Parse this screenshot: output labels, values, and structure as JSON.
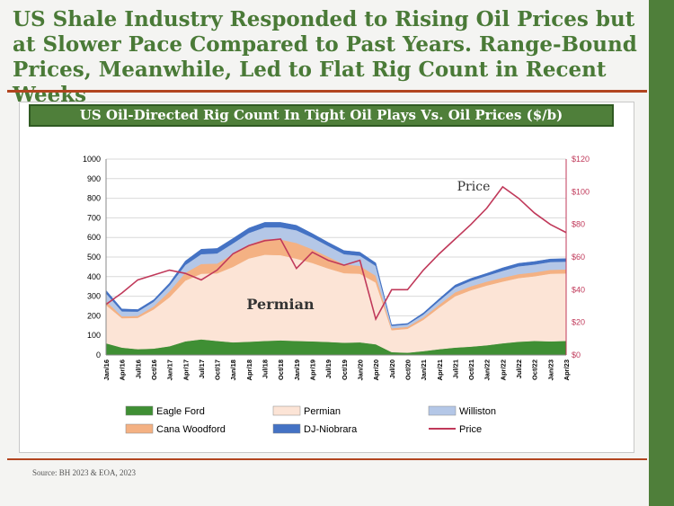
{
  "page": {
    "title": "US Shale Industry Responded to Rising Oil Prices but at Slower Pace Compared to Past Years. Range-Bound Prices, Meanwhile, Led to Flat Rig Count in Recent Weeks",
    "source": "Source: BH 2023 & EOA, 2023"
  },
  "colors": {
    "sidebar": "#4f7f3a",
    "title": "#4a7a37",
    "rule": "#b24520",
    "eagle_ford": "#3f8f34",
    "permian": "#fce4d6",
    "cana_woodford": "#f4b183",
    "williston": "#b4c7e7",
    "dj_niobrara": "#4472c4",
    "price": "#c0395a"
  },
  "chart_data": {
    "type": "area",
    "title": "US Oil-Directed Rig Count In Tight Oil Plays Vs. Oil Prices ($/b)",
    "x": [
      "Jan/16",
      "Apr/16",
      "Jul/16",
      "Oct/16",
      "Jan/17",
      "Apr/17",
      "Jul/17",
      "Oct/17",
      "Jan/18",
      "Apr/18",
      "Jul/18",
      "Oct/18",
      "Jan/19",
      "Apr/19",
      "Jul/19",
      "Oct/19",
      "Jan/20",
      "Apr/20",
      "Jul/20",
      "Oct/20",
      "Jan/21",
      "Apr/21",
      "Jul/21",
      "Oct/21",
      "Jan/22",
      "Apr/22",
      "Jul/22",
      "Oct/22",
      "Jan/23",
      "Apr/23"
    ],
    "y_left": {
      "min": 0,
      "max": 1000,
      "ticks": [
        "0",
        "100",
        "200",
        "300",
        "400",
        "500",
        "600",
        "700",
        "800",
        "900",
        "1000"
      ]
    },
    "y_right": {
      "min": 0,
      "max": 120,
      "ticks": [
        "$0",
        "$20",
        "$40",
        "$60",
        "$80",
        "$100",
        "$120"
      ]
    },
    "stacked": true,
    "series": [
      {
        "name": "Eagle Ford",
        "axis": "left",
        "values": [
          60,
          38,
          30,
          33,
          45,
          70,
          80,
          72,
          65,
          68,
          72,
          75,
          72,
          70,
          67,
          63,
          65,
          55,
          15,
          12,
          20,
          30,
          38,
          43,
          50,
          60,
          68,
          72,
          70,
          72
        ]
      },
      {
        "name": "Permian",
        "axis": "left",
        "values": [
          195,
          150,
          160,
          200,
          250,
          310,
          335,
          345,
          385,
          425,
          440,
          435,
          420,
          400,
          375,
          355,
          350,
          315,
          112,
          122,
          160,
          212,
          262,
          288,
          305,
          315,
          325,
          330,
          345,
          345
        ]
      },
      {
        "name": "Cana Woodford",
        "axis": "left",
        "values": [
          20,
          10,
          10,
          15,
          30,
          40,
          50,
          50,
          65,
          70,
          80,
          80,
          80,
          70,
          60,
          45,
          40,
          35,
          10,
          10,
          12,
          15,
          20,
          20,
          20,
          20,
          20,
          20,
          20,
          20
        ]
      },
      {
        "name": "Williston",
        "axis": "left",
        "values": [
          40,
          25,
          22,
          24,
          30,
          40,
          50,
          52,
          55,
          60,
          60,
          62,
          65,
          60,
          55,
          52,
          52,
          50,
          12,
          12,
          15,
          20,
          25,
          28,
          30,
          35,
          40,
          40,
          40,
          40
        ]
      },
      {
        "name": "DJ-Niobrara",
        "axis": "left",
        "values": [
          15,
          12,
          10,
          10,
          12,
          20,
          25,
          25,
          25,
          25,
          25,
          25,
          25,
          20,
          18,
          18,
          18,
          15,
          5,
          5,
          8,
          10,
          12,
          12,
          12,
          15,
          15,
          15,
          15,
          15
        ]
      },
      {
        "name": "Price",
        "axis": "right",
        "type": "line",
        "values": [
          31,
          38,
          46,
          49,
          52,
          50,
          46,
          52,
          62,
          67,
          70,
          71,
          53,
          63,
          58,
          55,
          58,
          22,
          40,
          40,
          52,
          62,
          71,
          80,
          90,
          103,
          96,
          87,
          80,
          75
        ]
      }
    ],
    "legend": {
      "position": "bottom",
      "entries": [
        "Eagle Ford",
        "Permian",
        "Williston",
        "Cana Woodford",
        "DJ-Niobrara",
        "Price"
      ]
    },
    "annotations": [
      {
        "text": "Permian"
      },
      {
        "text": "Price"
      }
    ]
  }
}
